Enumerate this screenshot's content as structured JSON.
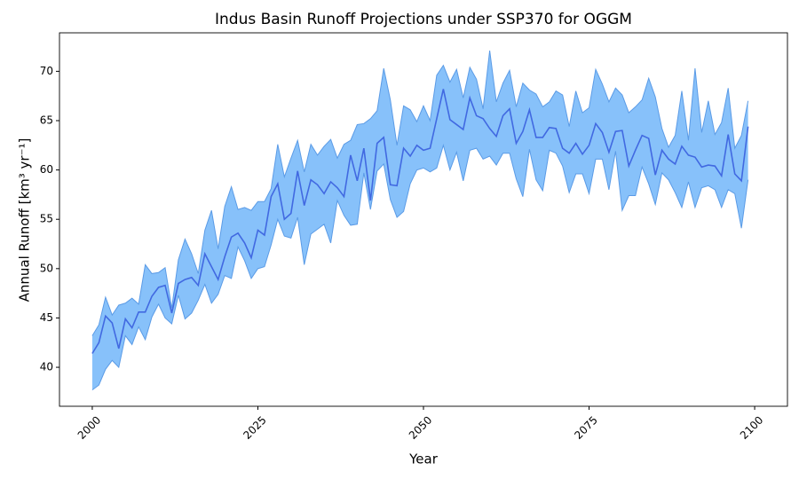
{
  "chart_data": {
    "type": "band-line",
    "title": "Indus Basin Runoff Projections under SSP370 for OGGM",
    "xlabel": "Year",
    "ylabel": "Annual Runoff [km³ yr⁻¹]",
    "x": [
      2000,
      2001,
      2002,
      2003,
      2004,
      2005,
      2006,
      2007,
      2008,
      2009,
      2010,
      2011,
      2012,
      2013,
      2014,
      2015,
      2016,
      2017,
      2018,
      2019,
      2020,
      2021,
      2022,
      2023,
      2024,
      2025,
      2026,
      2027,
      2028,
      2029,
      2030,
      2031,
      2032,
      2033,
      2034,
      2035,
      2036,
      2037,
      2038,
      2039,
      2040,
      2041,
      2042,
      2043,
      2044,
      2045,
      2046,
      2047,
      2048,
      2049,
      2050,
      2051,
      2052,
      2053,
      2054,
      2055,
      2056,
      2057,
      2058,
      2059,
      2060,
      2061,
      2062,
      2063,
      2064,
      2065,
      2066,
      2067,
      2068,
      2069,
      2070,
      2071,
      2072,
      2073,
      2074,
      2075,
      2076,
      2077,
      2078,
      2079,
      2080,
      2081,
      2082,
      2083,
      2084,
      2085,
      2086,
      2087,
      2088,
      2089,
      2090,
      2091,
      2092,
      2093,
      2094,
      2095,
      2096,
      2097,
      2098,
      2099
    ],
    "values": [
      41.4,
      42.5,
      45.2,
      44.5,
      41.9,
      44.9,
      44.0,
      45.6,
      45.6,
      47.2,
      48.1,
      48.3,
      45.5,
      48.5,
      48.9,
      49.1,
      48.3,
      51.5,
      50.2,
      48.9,
      51.2,
      53.2,
      53.6,
      52.6,
      51.1,
      53.9,
      53.4,
      57.3,
      58.6,
      55.0,
      55.6,
      59.9,
      56.4,
      59.0,
      58.5,
      57.6,
      58.8,
      58.2,
      57.3,
      61.5,
      58.9,
      62.2,
      56.9,
      62.7,
      63.3,
      58.5,
      58.4,
      62.2,
      61.4,
      62.5,
      62.0,
      62.2,
      65.2,
      68.2,
      65.1,
      64.6,
      64.1,
      67.3,
      65.5,
      65.2,
      64.2,
      63.4,
      65.5,
      66.2,
      62.7,
      63.9,
      66.1,
      63.3,
      63.3,
      64.3,
      64.2,
      62.2,
      61.7,
      62.7,
      61.6,
      62.5,
      64.7,
      63.8,
      61.8,
      63.9,
      64.0,
      60.4,
      62.0,
      63.5,
      63.2,
      59.5,
      62.0,
      61.1,
      60.6,
      62.4,
      61.5,
      61.3,
      60.3,
      60.5,
      60.4,
      59.4,
      63.6,
      59.6,
      58.9,
      64.4
    ],
    "upper": [
      43.2,
      44.3,
      47.1,
      45.3,
      46.3,
      46.5,
      47.0,
      46.4,
      50.4,
      49.5,
      49.6,
      50.1,
      46.0,
      50.9,
      53.0,
      51.5,
      49.5,
      53.9,
      55.9,
      52.0,
      56.3,
      58.3,
      56.0,
      56.2,
      55.9,
      56.8,
      56.8,
      58.1,
      62.6,
      59.3,
      61.2,
      63.0,
      59.8,
      62.6,
      61.5,
      62.4,
      63.1,
      61.2,
      62.6,
      63.0,
      64.6,
      64.7,
      65.2,
      66.0,
      70.3,
      67.1,
      62.5,
      66.5,
      66.1,
      64.9,
      66.5,
      65.0,
      69.6,
      70.6,
      68.9,
      70.2,
      67.3,
      70.4,
      69.2,
      66.2,
      72.1,
      66.9,
      68.8,
      70.1,
      66.4,
      68.8,
      68.1,
      67.7,
      66.4,
      66.9,
      68.0,
      67.6,
      64.4,
      68.0,
      65.8,
      66.3,
      70.2,
      68.7,
      66.9,
      68.3,
      67.6,
      65.8,
      66.4,
      67.1,
      69.3,
      67.4,
      64.2,
      62.3,
      63.5,
      68.0,
      63.0,
      70.3,
      63.8,
      67.0,
      63.6,
      64.8,
      68.3,
      62.2,
      63.5,
      67.0
    ],
    "lower": [
      37.7,
      38.2,
      39.8,
      40.7,
      40.0,
      43.2,
      42.3,
      44.1,
      42.8,
      45.1,
      46.4,
      45.0,
      44.4,
      47.3,
      44.9,
      45.5,
      46.8,
      48.4,
      46.5,
      47.4,
      49.3,
      49.0,
      52.2,
      50.8,
      49.0,
      50.0,
      50.2,
      52.4,
      55.0,
      53.3,
      53.1,
      55.2,
      50.4,
      53.5,
      54.0,
      54.5,
      52.6,
      56.9,
      55.4,
      54.4,
      54.5,
      59.7,
      56.0,
      59.9,
      60.6,
      57.0,
      55.2,
      55.8,
      58.6,
      60.0,
      60.2,
      59.8,
      60.2,
      62.5,
      60.0,
      61.8,
      58.9,
      62.0,
      62.2,
      61.1,
      61.4,
      60.5,
      61.7,
      61.7,
      59.1,
      57.3,
      62.1,
      59.0,
      57.9,
      62.0,
      61.7,
      60.4,
      57.7,
      59.6,
      59.6,
      57.6,
      61.1,
      61.1,
      58.0,
      61.9,
      55.9,
      57.4,
      57.4,
      60.3,
      58.6,
      56.5,
      59.7,
      59.0,
      57.7,
      56.2,
      58.8,
      56.2,
      58.2,
      58.4,
      58.0,
      56.2,
      58.0,
      57.6,
      54.1,
      59.0
    ],
    "color": "#4169e1",
    "band_color": "#87c1fa",
    "band_edge_color": "#5b9be6",
    "xlim": [
      1995.05,
      2104.95
    ],
    "ylim": [
      36.05,
      73.9
    ],
    "xticks": [
      2000,
      2025,
      2050,
      2075,
      2100
    ],
    "yticks": [
      40,
      45,
      50,
      55,
      60,
      65,
      70
    ],
    "grid": false
  }
}
